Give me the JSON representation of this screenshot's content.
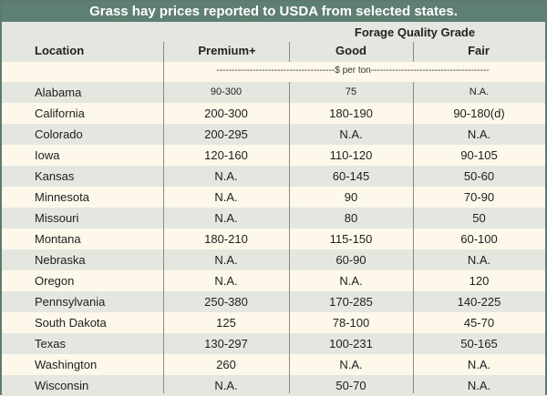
{
  "title": "Grass hay prices reported to USDA from selected states.",
  "header": {
    "location": "Location",
    "group": "Forage Quality Grade",
    "columns": [
      "Premium+",
      "Good",
      "Fair"
    ],
    "units": "---------------------------------------$ per ton---------------------------------------"
  },
  "rows": [
    {
      "location": "Alabama",
      "premium": "90-300",
      "good": "75",
      "fair": "N.A."
    },
    {
      "location": "California",
      "premium": "200-300",
      "good": "180-190",
      "fair": "90-180(d)"
    },
    {
      "location": "Colorado",
      "premium": "200-295",
      "good": "N.A.",
      "fair": "N.A."
    },
    {
      "location": "Iowa",
      "premium": "120-160",
      "good": "110-120",
      "fair": "90-105"
    },
    {
      "location": "Kansas",
      "premium": "N.A.",
      "good": "60-145",
      "fair": "50-60"
    },
    {
      "location": "Minnesota",
      "premium": "N.A.",
      "good": "90",
      "fair": "70-90"
    },
    {
      "location": "Missouri",
      "premium": "N.A.",
      "good": "80",
      "fair": "50"
    },
    {
      "location": "Montana",
      "premium": "180-210",
      "good": "115-150",
      "fair": "60-100"
    },
    {
      "location": "Nebraska",
      "premium": "N.A.",
      "good": "60-90",
      "fair": "N.A."
    },
    {
      "location": "Oregon",
      "premium": "N.A.",
      "good": "N.A.",
      "fair": "120"
    },
    {
      "location": "Pennsylvania",
      "premium": "250-380",
      "good": "170-285",
      "fair": "140-225"
    },
    {
      "location": "South Dakota",
      "premium": "125",
      "good": "78-100",
      "fair": "45-70"
    },
    {
      "location": "Texas",
      "premium": "130-297",
      "good": "100-231",
      "fair": "50-165"
    },
    {
      "location": "Washington",
      "premium": "260",
      "good": "N.A.",
      "fair": "N.A."
    },
    {
      "location": "Wisconsin",
      "premium": "N.A.",
      "good": "50-70",
      "fair": "N.A."
    }
  ]
}
